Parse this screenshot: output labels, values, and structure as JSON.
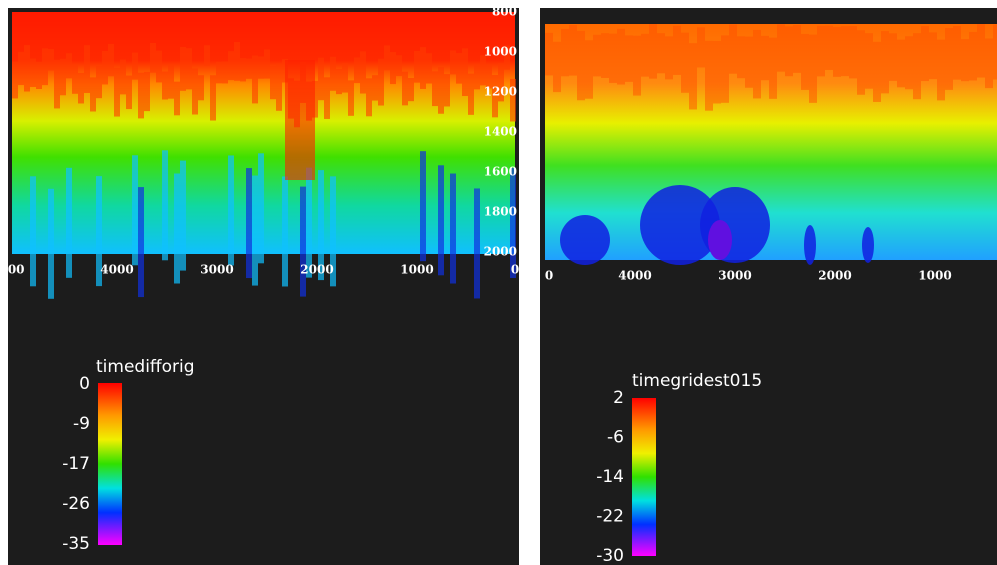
{
  "panels": [
    {
      "x_ticks": [
        "000",
        "4000",
        "3000",
        "2000",
        "1000",
        "0"
      ],
      "y_ticks": [
        "800",
        "1000",
        "1200",
        "1400",
        "1600",
        "1800",
        "2000"
      ],
      "legend": {
        "title": "timedifforig",
        "labels": [
          "0",
          "-9",
          "-17",
          "-26",
          "-35"
        ]
      }
    },
    {
      "x_ticks": [
        "0",
        "4000",
        "3000",
        "2000",
        "1000"
      ],
      "legend": {
        "title": "timegridest015",
        "labels": [
          "2",
          "-6",
          "-14",
          "-22",
          "-30"
        ]
      }
    }
  ]
}
